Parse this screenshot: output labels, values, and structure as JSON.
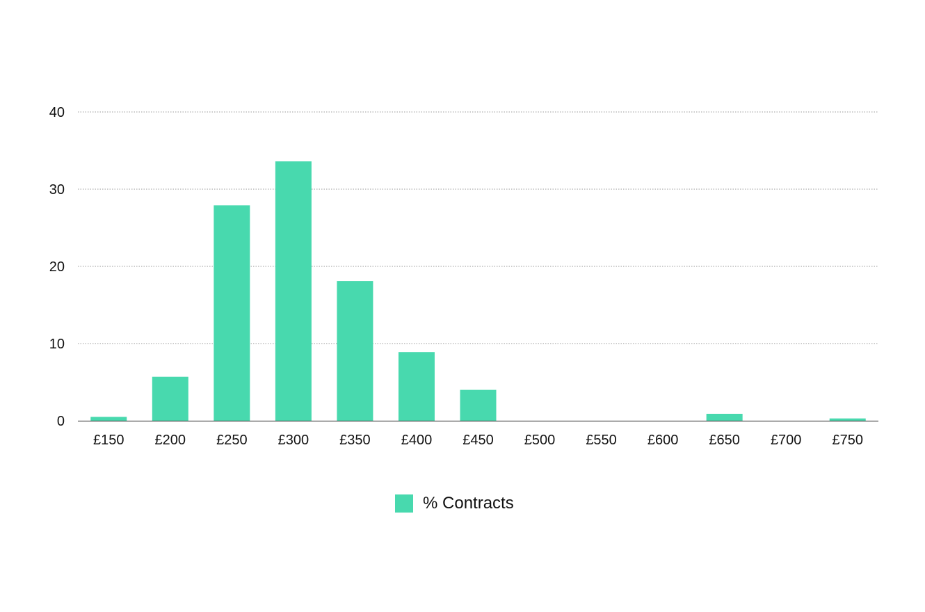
{
  "chart_data": {
    "type": "bar",
    "categories": [
      "£150",
      "£200",
      "£250",
      "£300",
      "£350",
      "£400",
      "£450",
      "£500",
      "£550",
      "£600",
      "£650",
      "£700",
      "£750"
    ],
    "series": [
      {
        "name": "% Contracts",
        "values": [
          0.5,
          5.7,
          27.9,
          33.6,
          18.1,
          8.9,
          4.0,
          0,
          0,
          0,
          0.9,
          0,
          0.3
        ]
      }
    ],
    "title": "",
    "xlabel": "",
    "ylabel": "",
    "ylim": [
      0,
      40
    ],
    "yticks": [
      0,
      10,
      20,
      30,
      40
    ],
    "grid": "horizontal dotted",
    "legend_position": "bottom-center",
    "colors": {
      "bar": "#48D9AE",
      "grid": "#999999",
      "axis": "#555555"
    }
  }
}
